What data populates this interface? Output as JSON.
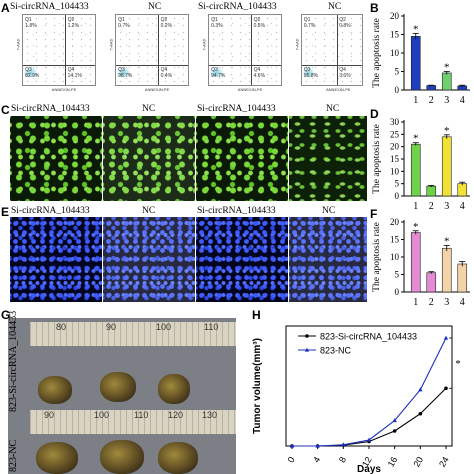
{
  "panels": {
    "A": {
      "letter": "A",
      "labels": [
        "Si-circRNA_104433",
        "NC",
        "Si-circRNA_104433",
        "NC"
      ],
      "quadrants": [
        {
          "q1": "Q1\n1.8%",
          "q2": "Q2\n1.2%",
          "q3": "Q3\n82.9%",
          "q4": "Q4\n14.1%"
        },
        {
          "q1": "Q1\n0.7%",
          "q2": "Q2\n0.2%",
          "q3": "Q3\n98.7%",
          "q4": "Q4\n0.4%"
        },
        {
          "q1": "Q1\n0.3%",
          "q2": "Q2\n0.5%",
          "q3": "Q3\n94.7%",
          "q4": "Q4\n4.6%"
        },
        {
          "q1": "Q1\n0.7%",
          "q2": "Q2\n0.8%",
          "q3": "Q3\n95.8%",
          "q4": "Q4\n3.6%"
        }
      ],
      "y_axis": "7-AAD",
      "x_axis": "ANNEXIN-PE"
    },
    "C": {
      "letter": "C",
      "labels": [
        "Si-circRNA_104433",
        "NC",
        "Si-circRNA_104433",
        "NC"
      ]
    },
    "E": {
      "letter": "E",
      "labels": [
        "Si-circRNA_104433",
        "NC",
        "Si-circRNA_104433",
        "NC"
      ]
    },
    "G": {
      "letter": "G",
      "ruler_top": [
        "80",
        "90",
        "100",
        "110"
      ],
      "ruler_bottom": [
        "90",
        "100",
        "110",
        "120",
        "130"
      ],
      "row_labels": [
        "823-Si-circRNA_104433",
        "823-NC"
      ]
    },
    "B": {
      "letter": "B"
    },
    "D": {
      "letter": "D"
    },
    "F": {
      "letter": "F"
    },
    "H": {
      "letter": "H"
    }
  },
  "colors": {
    "B": [
      "#1f3fbf",
      "#1f3fbf",
      "#6fd06f",
      "#1f3fbf"
    ],
    "D": [
      "#6fd24a",
      "#6fd24a",
      "#f2e236",
      "#f2e236"
    ],
    "F": [
      "#e58bd4",
      "#e58bd4",
      "#f2d4a8",
      "#f2d4a8"
    ],
    "H_series": [
      "#000000",
      "#1c2fbf"
    ]
  },
  "chart_data": [
    {
      "type": "bar",
      "panel": "B",
      "categories": [
        "1",
        "2",
        "3",
        "4"
      ],
      "values": [
        14.5,
        1.2,
        4.6,
        1.1
      ],
      "errors": [
        0.8,
        0.1,
        0.4,
        0.2
      ],
      "significance": [
        "*",
        "",
        "*",
        ""
      ],
      "ylabel": "The apoptosis rate",
      "ylim": [
        0,
        20
      ],
      "yticks": [
        0,
        5,
        10,
        15,
        20
      ]
    },
    {
      "type": "bar",
      "panel": "D",
      "categories": [
        "1",
        "2",
        "3",
        "4"
      ],
      "values": [
        21,
        4,
        24,
        5
      ],
      "errors": [
        0.6,
        0.3,
        0.8,
        0.6
      ],
      "significance": [
        "*",
        "",
        "*",
        ""
      ],
      "ylabel": "The apoptosis rate",
      "ylim": [
        0,
        30
      ],
      "yticks": [
        0,
        5,
        10,
        15,
        20,
        25,
        30
      ]
    },
    {
      "type": "bar",
      "panel": "F",
      "categories": [
        "1",
        "2",
        "3",
        "4"
      ],
      "values": [
        17,
        5.5,
        12.5,
        8
      ],
      "errors": [
        0.5,
        0.3,
        0.8,
        0.7
      ],
      "significance": [
        "*",
        "",
        "*",
        ""
      ],
      "ylabel": "The apoptosis rate",
      "ylim": [
        0,
        20
      ],
      "yticks": [
        0,
        5,
        10,
        15,
        20
      ]
    },
    {
      "type": "line",
      "panel": "H",
      "x": [
        0,
        4,
        8,
        12,
        16,
        20,
        24
      ],
      "series": [
        {
          "name": "823-Si-circRNA_104433",
          "values": [
            0,
            0,
            5,
            30,
            100,
            215,
            385
          ]
        },
        {
          "name": "823-NC",
          "values": [
            0,
            0,
            8,
            40,
            170,
            375,
            720
          ]
        }
      ],
      "xlabel": "Days",
      "ylabel": "Tumor volume(mm³)",
      "xticks": [
        "0",
        "4",
        "8",
        "12",
        "16",
        "20",
        "24"
      ],
      "ylim": [
        0,
        800
      ],
      "annotation": "*",
      "legend": "top-left"
    }
  ]
}
